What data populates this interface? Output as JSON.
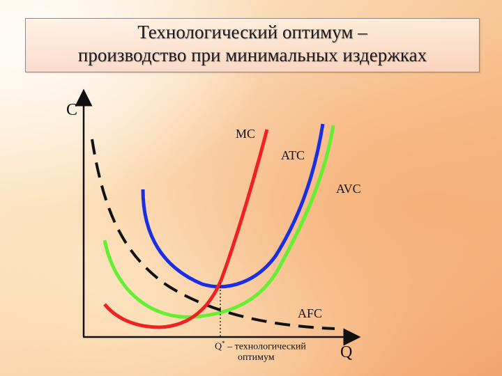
{
  "title": {
    "line1": "Технологический оптимум –",
    "line2": "производство при минимальных издержках"
  },
  "axes": {
    "y_label": "C",
    "x_label": "Q"
  },
  "curves": {
    "mc": "MC",
    "atc": "ATC",
    "avc": "AVC",
    "afc": "AFC"
  },
  "optimum": {
    "symbol": "Q",
    "sup": "*",
    "line1": "– технологический",
    "line2": "оптимум"
  },
  "colors": {
    "mc": "#ee2222",
    "atc": "#1a2ee6",
    "avc": "#66ee33",
    "afc": "#111111"
  }
}
